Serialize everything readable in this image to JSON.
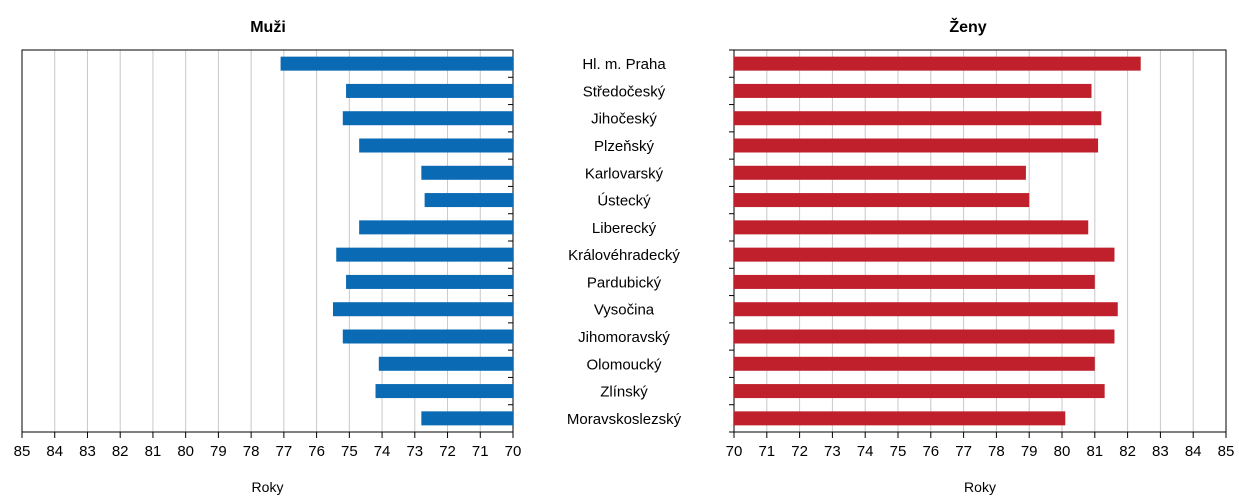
{
  "chart_data": {
    "type": "bar",
    "categories": [
      "Hl. m. Praha",
      "Středočeský",
      "Jihočeský",
      "Plzeňský",
      "Karlovarský",
      "Ústecký",
      "Liberecký",
      "Královéhradecký",
      "Pardubický",
      "Vysočina",
      "Jihomoravský",
      "Olomoucký",
      "Zlínský",
      "Moravskoslezský"
    ],
    "series": [
      {
        "name": "Muži",
        "color": "#0a6ab4",
        "values": [
          77.1,
          75.1,
          75.2,
          74.7,
          72.8,
          72.7,
          74.7,
          75.4,
          75.1,
          75.5,
          75.2,
          74.1,
          74.2,
          72.8
        ]
      },
      {
        "name": "Ženy",
        "color": "#c0202c",
        "values": [
          82.4,
          80.9,
          81.2,
          81.1,
          78.9,
          79.0,
          80.8,
          81.6,
          81.0,
          81.7,
          81.6,
          81.0,
          81.3,
          80.1
        ]
      }
    ],
    "xlim": [
      70,
      85
    ],
    "xlabel": "Roky",
    "ticks": [
      "70",
      "71",
      "72",
      "73",
      "74",
      "75",
      "76",
      "77",
      "78",
      "79",
      "80",
      "81",
      "82",
      "83",
      "84",
      "85"
    ],
    "grid": true,
    "bar_direction": [
      "leftward",
      "rightward"
    ]
  }
}
